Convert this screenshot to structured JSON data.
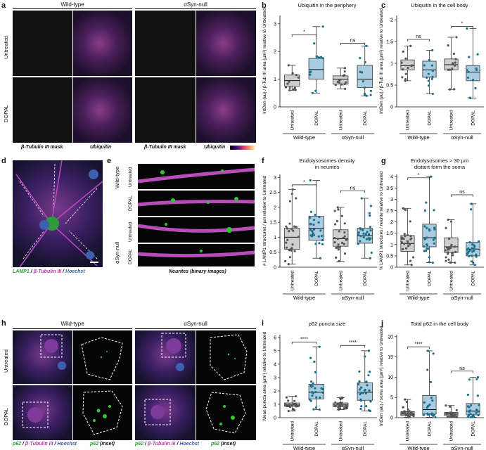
{
  "panels": {
    "a": {
      "label": "a",
      "wt": "Wild-type",
      "null": "αSyn-null",
      "untreated": "Untreated",
      "dopal": "DOPAL",
      "mask": "β-Tubulin III mask",
      "ubq": "Ubiquitin",
      "ubq_bar": "Ubiquitin"
    },
    "b": {
      "label": "b",
      "title": "Ubiquitin in the periphery",
      "ylabel": "IntDen (au) / β-Tub III area (µm²) relative to Untreated",
      "sig1": "*",
      "sig2": "ns"
    },
    "c": {
      "label": "c",
      "title": "Ubiquitin in the cell body",
      "ylabel": "IntDen (au) / β-Tub III area (µm²) relative to Untreated",
      "sig1": "ns",
      "sig2": "*"
    },
    "d": {
      "label": "d",
      "legend_lamp": "LAMP1",
      "legend_sep1": " / ",
      "legend_tub": "β-Tubulin III",
      "legend_sep2": " / ",
      "legend_h": "Hoechst"
    },
    "e": {
      "label": "e",
      "wt": "Wild-type",
      "null": "αSyn-null",
      "untreated": "Untreated",
      "dopal": "DOPAL",
      "caption": "Neurites (binary images)"
    },
    "f": {
      "label": "f",
      "title1": "Endolysosomes density",
      "title2": "in neurites",
      "ylabel": "# LAMP1 structures / µm relative to Untreated",
      "sig1": "*",
      "sig2": "ns"
    },
    "g": {
      "label": "g",
      "title1": "Endolysosomes > 30 µm",
      "title2": "distant form the soma",
      "ylabel": "% LAMP1 structures / neurite relative to Untreated",
      "sig1": "*",
      "sig2": "ns"
    },
    "h": {
      "label": "h",
      "wt": "Wild-type",
      "null": "αSyn-null",
      "untreated": "Untreated",
      "dopal": "DOPAL",
      "leg_p62": "p62",
      "leg_sep": " / ",
      "leg_tub": "β-Tubulin III",
      "leg_h": "Hoechst",
      "leg_inset": "p62",
      "leg_inset_sfx": " (inset)"
    },
    "i": {
      "label": "i",
      "title": "p62 puncta size",
      "ylabel": "Mean puncta area (µm²) relative to Untreated",
      "sig1": "****",
      "sig2": "****"
    },
    "j": {
      "label": "j",
      "title": "Total p62 in the cell body",
      "ylabel": "IntDen (au) / soma area (µm²) relative to Untreated",
      "sig1": "****",
      "sig2": "ns"
    }
  },
  "common": {
    "untreated": "Untreated",
    "dopal": "DOPAL",
    "wt": "Wild-type",
    "null": "αSyn-null"
  },
  "colors": {
    "grey_box": "#cfcfcf",
    "blue_box": "#a9cde0",
    "dot_grey": "#555555",
    "dot_blue": "#1d6f8a",
    "magenta": "#b04ab5",
    "green": "#34c43a"
  },
  "chart_data": [
    {
      "type": "box",
      "id": "b",
      "yticks": [
        0,
        1,
        2,
        3
      ],
      "ylim": [
        0,
        3.3
      ],
      "groups": [
        {
          "median": 0.95,
          "q1": 0.75,
          "q3": 1.15,
          "lo": 0.6,
          "hi": 1.5,
          "dark": false
        },
        {
          "median": 1.35,
          "q1": 1.0,
          "q3": 1.75,
          "lo": 0.5,
          "hi": 2.9,
          "dark": true
        },
        {
          "median": 1.0,
          "q1": 0.82,
          "q3": 1.12,
          "lo": 0.65,
          "hi": 1.4,
          "dark": false
        },
        {
          "median": 1.0,
          "q1": 0.7,
          "q3": 1.5,
          "lo": 0.4,
          "hi": 2.2,
          "dark": true
        }
      ]
    },
    {
      "type": "box",
      "id": "c",
      "yticks": [
        0,
        0.5,
        1,
        1.5,
        2
      ],
      "ylim": [
        0,
        2.1
      ],
      "groups": [
        {
          "median": 0.95,
          "q1": 0.85,
          "q3": 1.08,
          "lo": 0.6,
          "hi": 1.4,
          "dark": false
        },
        {
          "median": 0.85,
          "q1": 0.68,
          "q3": 1.05,
          "lo": 0.3,
          "hi": 1.3,
          "dark": true
        },
        {
          "median": 0.97,
          "q1": 0.85,
          "q3": 1.1,
          "lo": 0.4,
          "hi": 1.6,
          "dark": false
        },
        {
          "median": 0.8,
          "q1": 0.6,
          "q3": 0.95,
          "lo": 0.2,
          "hi": 1.8,
          "dark": true
        }
      ]
    },
    {
      "type": "box",
      "id": "f",
      "yticks": [
        0,
        0.5,
        1,
        1.5,
        2,
        2.5,
        3
      ],
      "ylim": [
        0,
        3.1
      ],
      "groups": [
        {
          "median": 1.0,
          "q1": 0.6,
          "q3": 1.3,
          "lo": 0.1,
          "hi": 2.6,
          "dark": false
        },
        {
          "median": 1.3,
          "q1": 0.9,
          "q3": 1.7,
          "lo": 0.3,
          "hi": 2.9,
          "dark": true
        },
        {
          "median": 0.95,
          "q1": 0.7,
          "q3": 1.25,
          "lo": 0.2,
          "hi": 2.0,
          "dark": false
        },
        {
          "median": 1.05,
          "q1": 0.8,
          "q3": 1.3,
          "lo": 0.3,
          "hi": 2.3,
          "dark": true
        }
      ]
    },
    {
      "type": "box",
      "id": "g",
      "yticks": [
        0,
        0.5,
        1,
        1.5,
        2,
        2.5,
        3,
        3.5,
        4
      ],
      "ylim": [
        0,
        4.1
      ],
      "groups": [
        {
          "median": 1.05,
          "q1": 0.7,
          "q3": 1.4,
          "lo": 0.1,
          "hi": 2.6,
          "dark": false
        },
        {
          "median": 1.3,
          "q1": 0.9,
          "q3": 1.9,
          "lo": 0.2,
          "hi": 4.0,
          "dark": true
        },
        {
          "median": 0.9,
          "q1": 0.65,
          "q3": 1.3,
          "lo": 0.2,
          "hi": 2.1,
          "dark": false
        },
        {
          "median": 0.8,
          "q1": 0.5,
          "q3": 1.1,
          "lo": 0.1,
          "hi": 2.8,
          "dark": true
        }
      ]
    },
    {
      "type": "box",
      "id": "i",
      "yticks": [
        0,
        1,
        2,
        3,
        4,
        5,
        6
      ],
      "ylim": [
        0,
        6.2
      ],
      "groups": [
        {
          "median": 0.95,
          "q1": 0.85,
          "q3": 1.1,
          "lo": 0.5,
          "hi": 1.6,
          "dark": false
        },
        {
          "median": 1.9,
          "q1": 1.4,
          "q3": 2.5,
          "lo": 0.6,
          "hi": 5.3,
          "dark": true
        },
        {
          "median": 0.95,
          "q1": 0.82,
          "q3": 1.1,
          "lo": 0.6,
          "hi": 1.5,
          "dark": false
        },
        {
          "median": 1.9,
          "q1": 1.3,
          "q3": 2.6,
          "lo": 0.5,
          "hi": 5.0,
          "dark": true
        }
      ]
    },
    {
      "type": "box",
      "id": "j",
      "yticks": [
        0,
        5,
        10,
        15,
        20
      ],
      "ylim": [
        0,
        20.5
      ],
      "groups": [
        {
          "median": 0.9,
          "q1": 0.5,
          "q3": 1.5,
          "lo": 0.1,
          "hi": 4.5,
          "dark": false
        },
        {
          "median": 2.0,
          "q1": 0.9,
          "q3": 5.5,
          "lo": 0.1,
          "hi": 16.5,
          "dark": true
        },
        {
          "median": 0.9,
          "q1": 0.5,
          "q3": 1.3,
          "lo": 0.1,
          "hi": 3.0,
          "dark": false
        },
        {
          "median": 1.6,
          "q1": 0.7,
          "q3": 3.5,
          "lo": 0.1,
          "hi": 10.0,
          "dark": true
        }
      ]
    }
  ]
}
